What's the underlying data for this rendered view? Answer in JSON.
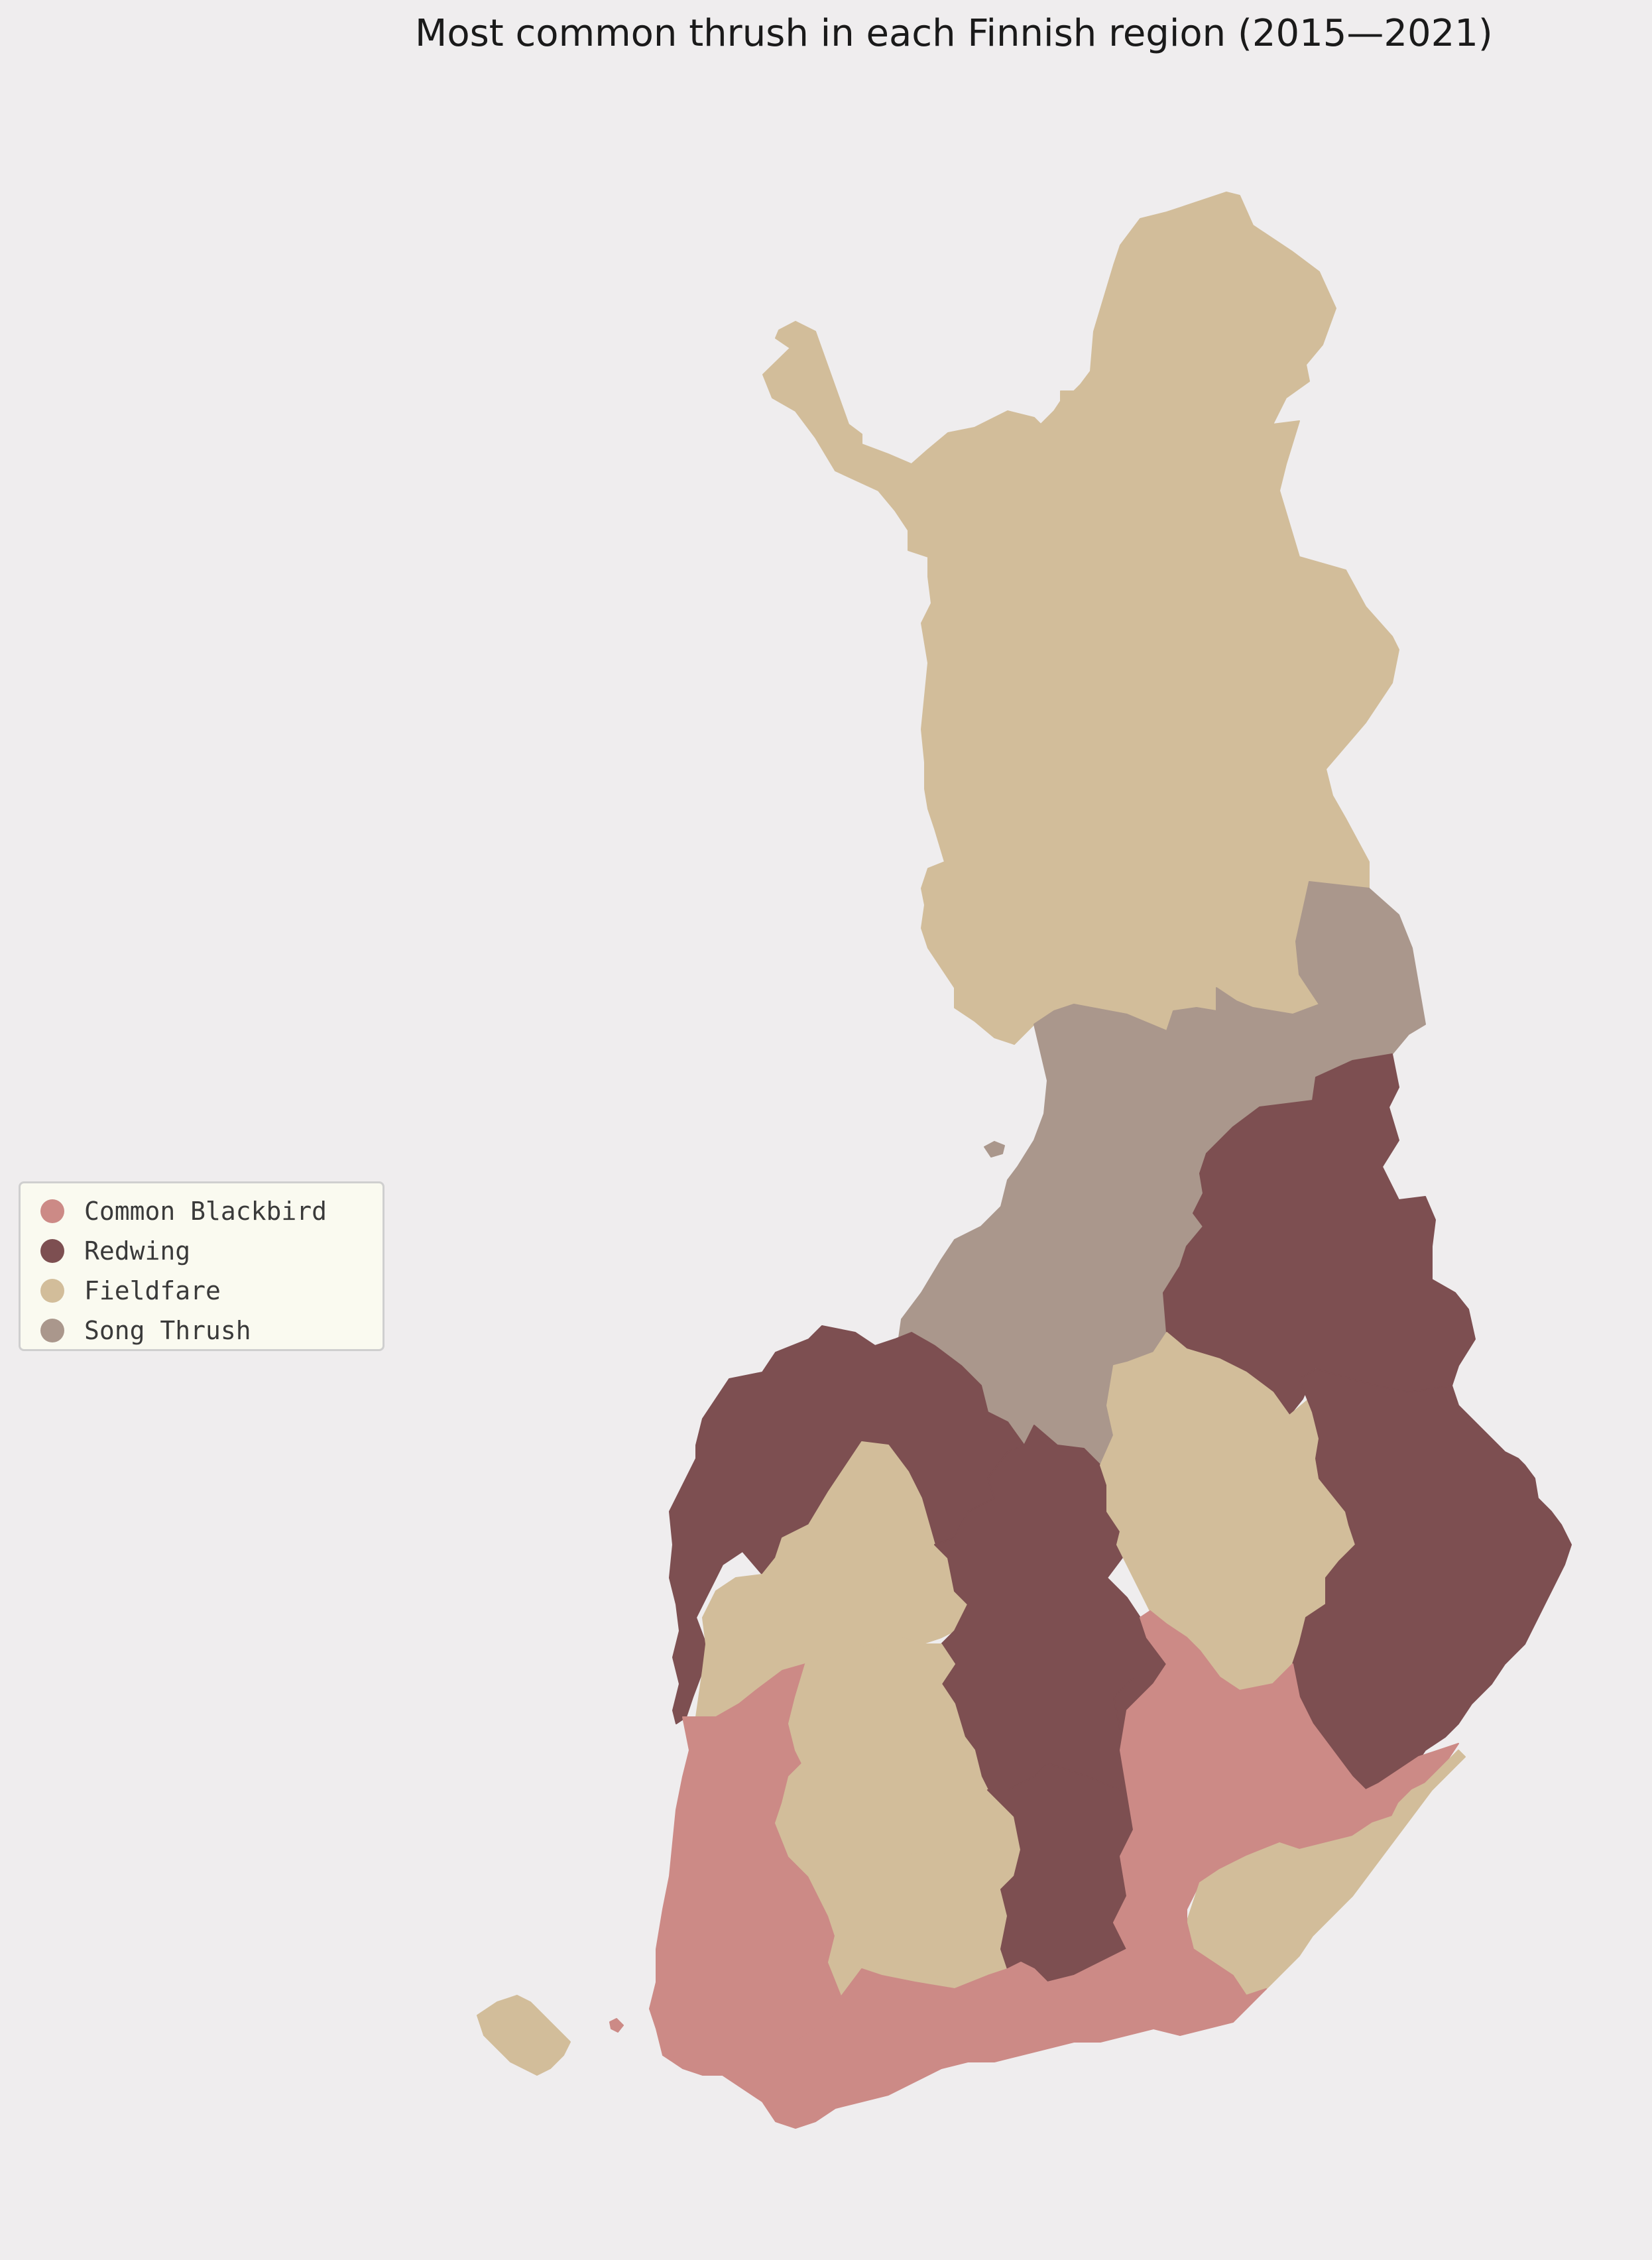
{
  "title": "Most common thrush in each Finnish region (2015—2021)",
  "legend": {
    "items": [
      {
        "label": "Common Blackbird",
        "color": "#cc8a86"
      },
      {
        "label": "Redwing",
        "color": "#7d4f51"
      },
      {
        "label": "Fieldfare",
        "color": "#d2bd9a"
      },
      {
        "label": "Song Thrush",
        "color": "#aa978c"
      }
    ]
  },
  "regions": [
    {
      "id": "north",
      "species": "Fieldfare"
    },
    {
      "id": "north-central",
      "species": "Song Thrush"
    },
    {
      "id": "east-central",
      "species": "Redwing"
    },
    {
      "id": "west-coast",
      "species": "Redwing"
    },
    {
      "id": "west-inland",
      "species": "Fieldfare"
    },
    {
      "id": "central",
      "species": "Redwing"
    },
    {
      "id": "savo",
      "species": "Fieldfare"
    },
    {
      "id": "east",
      "species": "Redwing"
    },
    {
      "id": "south-west",
      "species": "Common Blackbird"
    },
    {
      "id": "south-central",
      "species": "Fieldfare"
    },
    {
      "id": "south-central-east",
      "species": "Redwing"
    },
    {
      "id": "south-east",
      "species": "Common Blackbird"
    },
    {
      "id": "kymenlaakso",
      "species": "Fieldfare"
    },
    {
      "id": "south",
      "species": "Common Blackbird"
    },
    {
      "id": "aland",
      "species": "Fieldfare"
    }
  ]
}
